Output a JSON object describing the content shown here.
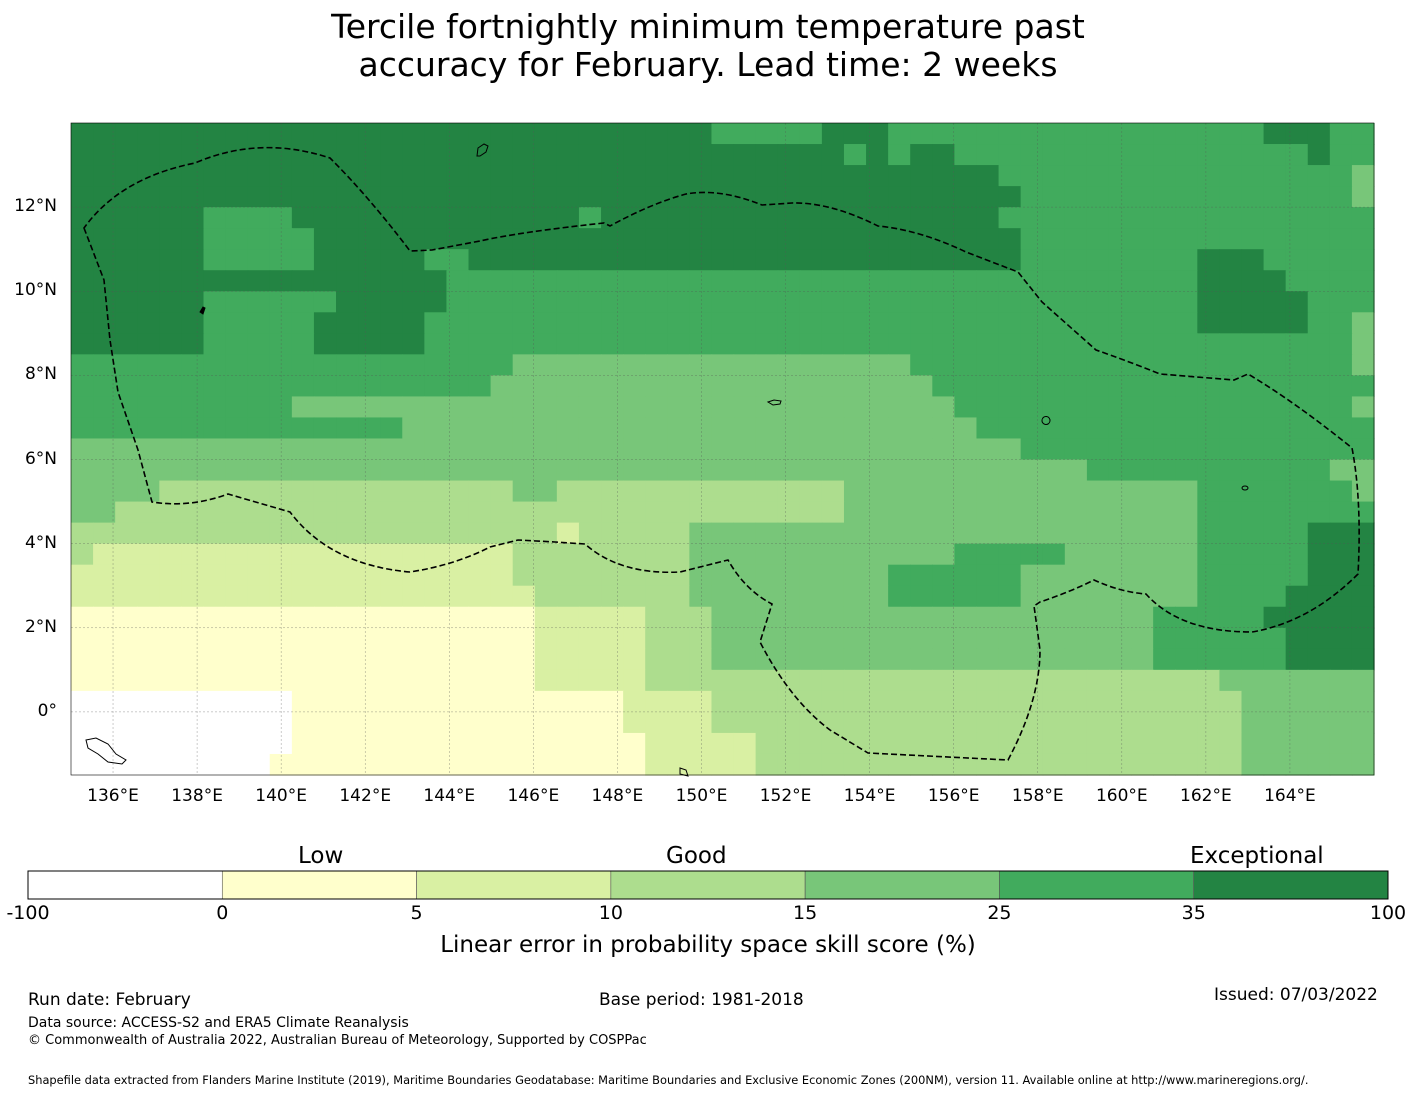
{
  "title": {
    "line1": "Tercile fortnightly minimum temperature past",
    "line2": "accuracy for February. Lead time: 2 weeks"
  },
  "map": {
    "lon_labels": [
      "136°E",
      "138°E",
      "140°E",
      "142°E",
      "144°E",
      "146°E",
      "148°E",
      "150°E",
      "152°E",
      "154°E",
      "156°E",
      "158°E",
      "160°E",
      "162°E",
      "164°E"
    ],
    "lon_values": [
      136,
      138,
      140,
      142,
      144,
      146,
      148,
      150,
      152,
      154,
      156,
      158,
      160,
      162,
      164
    ],
    "lat_labels": [
      "12°N",
      "10°N",
      "8°N",
      "6°N",
      "4°N",
      "2°N",
      "0°"
    ],
    "lat_values": [
      12,
      10,
      8,
      6,
      4,
      2,
      0
    ],
    "lon_range": [
      135.0,
      166.0
    ],
    "lat_range": [
      -1.5,
      14.0
    ],
    "grid": true,
    "boundary": "dashed EEZ outline (Federated States of Micronesia)"
  },
  "colorbar": {
    "categories": [
      {
        "label": "Low",
        "at": 2.5
      },
      {
        "label": "Good",
        "at": 12.5
      },
      {
        "label": "Exceptional",
        "at": 67.5
      }
    ],
    "ticks": [
      "-100",
      "0",
      "5",
      "10",
      "15",
      "25",
      "35",
      "100"
    ],
    "bins": [
      {
        "from": -100,
        "to": 0,
        "color": "#ffffff"
      },
      {
        "from": 0,
        "to": 5,
        "color": "#ffffcc"
      },
      {
        "from": 5,
        "to": 10,
        "color": "#d9f0a3"
      },
      {
        "from": 10,
        "to": 15,
        "color": "#addd8e"
      },
      {
        "from": 15,
        "to": 25,
        "color": "#78c679"
      },
      {
        "from": 25,
        "to": 35,
        "color": "#41ab5d"
      },
      {
        "from": 35,
        "to": 100,
        "color": "#238443"
      }
    ],
    "label": "Linear error in probability space skill score (%)"
  },
  "footer": {
    "run_date": "Run date: February",
    "base_period": "Base period: 1981-2018",
    "issued": "Issued: 07/03/2022",
    "data_source": "Data source: ACCESS-S2 and ERA5 Climate Reanalysis",
    "copyright": "© Commonwealth of Australia 2022, Australian Bureau of Meteorology, Supported by COSPPac",
    "shapefile": "Shapefile data extracted from Flanders Marine Institute (2019), Maritime Boundaries Geodatabase: Maritime Boundaries and Exclusive Economic Zones (200NM), version 11. Available online at http://www.marineregions.org/."
  },
  "grid_rows": [
    "66666666666666666666666666666555556665555555555555555566655",
    "66666666666666666666666666666666666565665555555555555555655",
    "66666666666666666666666666666666666666666655555555555555554",
    "66666666666666666666666666666666666666666665555555555555554",
    "66666655556666666666666566666666666666666655555555555555555",
    "66666655555666666666666666666666666666666665555555555555555",
    "66666655555666665566666666666666666666666665555555566655555",
    "66666666666666666555555555555555555555555555555555566665555",
    "66666655555566666555555555555555555555555555555555566666555",
    "66666655555666665555555555555555555555555555555555566666554",
    "66666655555666665555555555555555555555555555555555555555554",
    "55555555555555555555444444444444444444555555555555555555554",
    "55555555555555555554444444444444444444455555555555555555555",
    "55555555554444444444444444444444444444445555555555555555554",
    "55555555555555544444444444444444444444444555555555555555555",
    "44444444444444444444444444444444444444444445555555555555555",
    "44444444444444444444444444444444444444444444445555555555544",
    "44443333333333333333443333333333333444444444444444455555554",
    "44333333333333333333333333333333333444444444444444455555555",
    "33333333333333333333332333334444444444444444444444455555666",
    "32222222222222222222333333334444444444445555544444455555666",
    "22222222222222222222333333334444444445555554444444455555666",
    "22222222222222222222233333334444444445555554444444455556666",
    "11111111111111111111122222333444444444444444444445555566666",
    "11111111111111111111122222333444444444444444444445555556666",
    "11111111111111111111122222333444444444444444444445555556666",
    "11111111111111111111122222333333333333333333333333334444444",
    "00000000001111111111111112222333333333333333333333333444444",
    "00000000001111111111111112222333333333333333333333333444444",
    "00000000001111111111111111222223333333333333333333333444444",
    "00000000011111111111111111222223333333333333333333333444444"
  ]
}
